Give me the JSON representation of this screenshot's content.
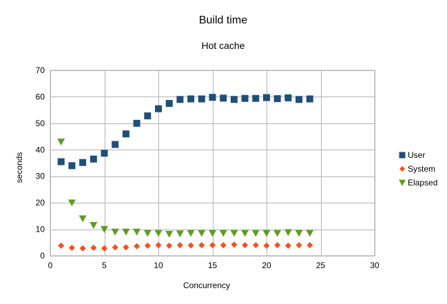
{
  "chart_data": {
    "type": "scatter",
    "title": "Build time",
    "subtitle": "Hot cache",
    "xlabel": "Concurrency",
    "ylabel": "seconds",
    "xlim": [
      0,
      30
    ],
    "ylim": [
      0,
      70
    ],
    "xticks": [
      0,
      5,
      10,
      15,
      20,
      25,
      30
    ],
    "yticks": [
      0,
      10,
      20,
      30,
      40,
      50,
      60,
      70
    ],
    "grid": true,
    "legend_position": "right",
    "x": [
      1,
      2,
      3,
      4,
      5,
      6,
      7,
      8,
      9,
      10,
      11,
      12,
      13,
      14,
      15,
      16,
      17,
      18,
      19,
      20,
      21,
      22,
      23,
      24
    ],
    "series": [
      {
        "name": "User",
        "marker": "square",
        "color": "#1f4e79",
        "values": [
          35.5,
          34,
          35.2,
          36.5,
          38.7,
          42,
          46,
          50,
          52.8,
          55.5,
          57.5,
          59,
          59.2,
          59.2,
          59.8,
          59.5,
          59,
          59.4,
          59.4,
          59.7,
          59.3,
          59.6,
          59,
          59.2
        ]
      },
      {
        "name": "System",
        "marker": "diamond",
        "color": "#ff4d1a",
        "values": [
          3.8,
          3,
          2.8,
          3,
          2.8,
          3.2,
          3.2,
          3.6,
          3.8,
          4,
          3.8,
          4,
          3.9,
          4,
          4,
          4,
          4.2,
          4,
          4,
          3.8,
          4,
          3.8,
          4,
          4
        ]
      },
      {
        "name": "Elapsed",
        "marker": "triangle-down",
        "color": "#5c9e1f",
        "values": [
          43,
          20,
          14,
          11.5,
          10,
          9,
          9,
          9,
          8.5,
          8.5,
          8.2,
          8.3,
          8.5,
          8.5,
          8.5,
          8.5,
          8.5,
          8.5,
          8.5,
          8.5,
          8.5,
          8.8,
          8.5,
          8.5
        ]
      }
    ]
  }
}
